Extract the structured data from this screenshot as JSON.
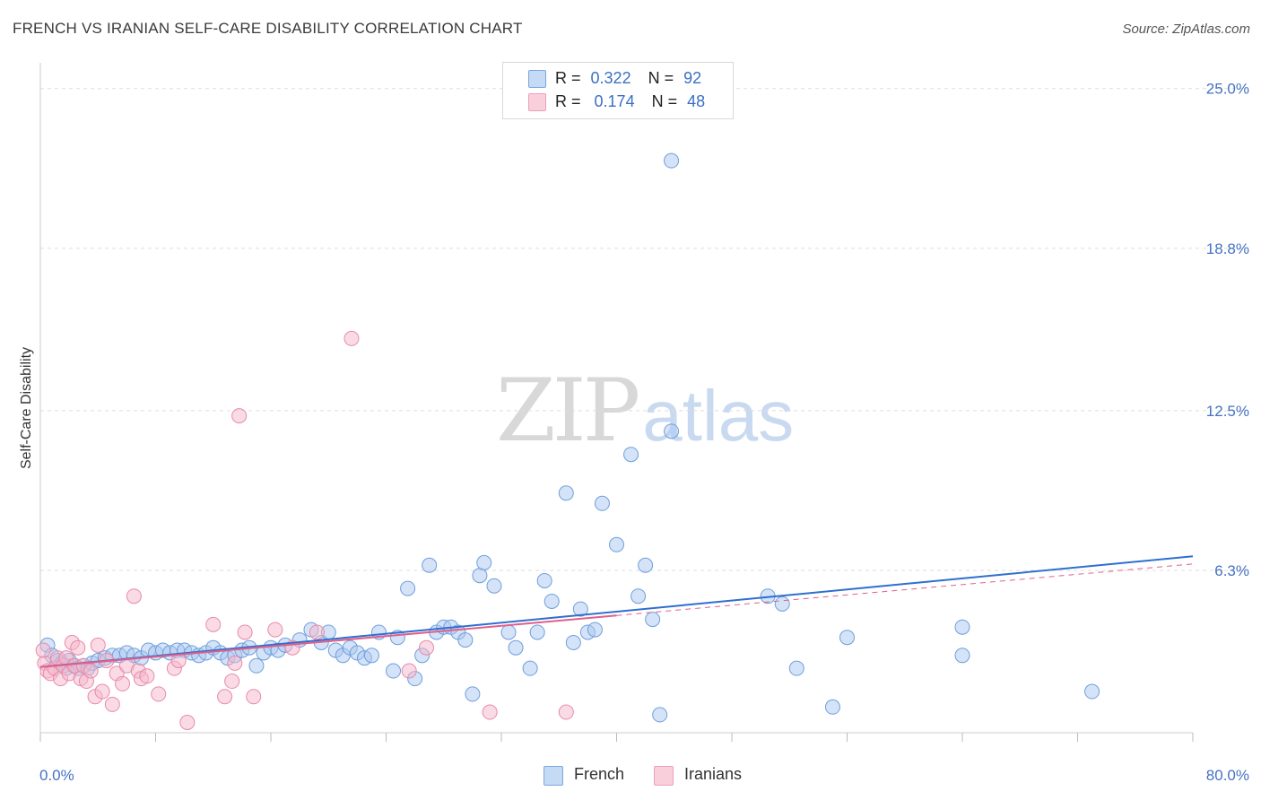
{
  "title": "FRENCH VS IRANIAN SELF-CARE DISABILITY CORRELATION CHART",
  "source": "Source: ZipAtlas.com",
  "watermark": {
    "zip": "ZIP",
    "atlas": "atlas"
  },
  "legend_top": {
    "french": {
      "r_label": "R =",
      "r_value": "0.322",
      "n_label": "N =",
      "n_value": "92"
    },
    "iranians": {
      "r_label": "R =",
      "r_value": "0.174",
      "n_label": "N =",
      "n_value": "48"
    }
  },
  "colors": {
    "french_fill": "#a9c8f0",
    "french_stroke": "#6f9fdc",
    "french_line": "#2f6fcf",
    "iranians_fill": "#f6b8cb",
    "iranians_stroke": "#e88aa8",
    "iranians_line": "#e0608a",
    "grid": "#dddddd",
    "tick_text": "#4472c4"
  },
  "chart_data": {
    "type": "scatter",
    "title": "FRENCH VS IRANIAN SELF-CARE DISABILITY CORRELATION CHART",
    "xlabel": "",
    "ylabel": "Self-Care Disability",
    "xlim": [
      0,
      80
    ],
    "ylim": [
      0,
      26
    ],
    "x_tick_labels": [
      "0.0%",
      "80.0%"
    ],
    "y_ticks": [
      6.3,
      12.5,
      18.8,
      25.0
    ],
    "y_tick_labels": [
      "6.3%",
      "12.5%",
      "18.8%",
      "25.0%"
    ],
    "legend": [
      "French",
      "Iranians"
    ],
    "series": [
      {
        "name": "French",
        "points": [
          [
            0.5,
            3.4
          ],
          [
            0.8,
            3.0
          ],
          [
            1.2,
            2.8
          ],
          [
            1.5,
            2.7
          ],
          [
            1.8,
            2.5
          ],
          [
            2.0,
            2.8
          ],
          [
            2.3,
            2.6
          ],
          [
            2.6,
            2.5
          ],
          [
            3.0,
            2.6
          ],
          [
            3.3,
            2.5
          ],
          [
            3.6,
            2.7
          ],
          [
            4.0,
            2.8
          ],
          [
            4.5,
            2.9
          ],
          [
            5.0,
            3.0
          ],
          [
            5.5,
            3.0
          ],
          [
            6.0,
            3.1
          ],
          [
            6.5,
            3.0
          ],
          [
            7.0,
            2.9
          ],
          [
            7.5,
            3.2
          ],
          [
            8.0,
            3.1
          ],
          [
            8.5,
            3.2
          ],
          [
            9.0,
            3.1
          ],
          [
            9.5,
            3.2
          ],
          [
            10.0,
            3.2
          ],
          [
            10.5,
            3.1
          ],
          [
            11.0,
            3.0
          ],
          [
            11.5,
            3.1
          ],
          [
            12.0,
            3.3
          ],
          [
            12.5,
            3.1
          ],
          [
            13.0,
            2.9
          ],
          [
            13.5,
            3.0
          ],
          [
            14.0,
            3.2
          ],
          [
            14.5,
            3.3
          ],
          [
            15.0,
            2.6
          ],
          [
            15.5,
            3.1
          ],
          [
            16.0,
            3.3
          ],
          [
            16.5,
            3.2
          ],
          [
            17.0,
            3.4
          ],
          [
            18.0,
            3.6
          ],
          [
            18.8,
            4.0
          ],
          [
            19.5,
            3.5
          ],
          [
            20.0,
            3.9
          ],
          [
            20.5,
            3.2
          ],
          [
            21.0,
            3.0
          ],
          [
            21.5,
            3.3
          ],
          [
            22.0,
            3.1
          ],
          [
            22.5,
            2.9
          ],
          [
            23.0,
            3.0
          ],
          [
            23.5,
            3.9
          ],
          [
            24.5,
            2.4
          ],
          [
            24.8,
            3.7
          ],
          [
            25.5,
            5.6
          ],
          [
            26.0,
            2.1
          ],
          [
            26.5,
            3.0
          ],
          [
            27.0,
            6.5
          ],
          [
            27.5,
            3.9
          ],
          [
            28.0,
            4.1
          ],
          [
            28.5,
            4.1
          ],
          [
            29.0,
            3.9
          ],
          [
            29.5,
            3.6
          ],
          [
            30.0,
            1.5
          ],
          [
            30.5,
            6.1
          ],
          [
            30.8,
            6.6
          ],
          [
            31.5,
            5.7
          ],
          [
            32.5,
            3.9
          ],
          [
            33.0,
            3.3
          ],
          [
            34.0,
            2.5
          ],
          [
            34.5,
            3.9
          ],
          [
            35.0,
            5.9
          ],
          [
            35.5,
            5.1
          ],
          [
            36.5,
            9.3
          ],
          [
            37.0,
            3.5
          ],
          [
            37.5,
            4.8
          ],
          [
            38.0,
            3.9
          ],
          [
            38.5,
            4.0
          ],
          [
            39.0,
            8.9
          ],
          [
            40.0,
            7.3
          ],
          [
            41.0,
            10.8
          ],
          [
            41.5,
            5.3
          ],
          [
            42.0,
            6.5
          ],
          [
            42.5,
            4.4
          ],
          [
            43.0,
            0.7
          ],
          [
            43.8,
            11.7
          ],
          [
            43.8,
            22.2
          ],
          [
            50.5,
            5.3
          ],
          [
            51.5,
            5.0
          ],
          [
            52.5,
            2.5
          ],
          [
            55.0,
            1.0
          ],
          [
            56.0,
            3.7
          ],
          [
            64.0,
            3.0
          ],
          [
            64.0,
            4.1
          ],
          [
            73.0,
            1.6
          ]
        ]
      },
      {
        "name": "Iranians",
        "points": [
          [
            0.3,
            2.7
          ],
          [
            0.5,
            2.4
          ],
          [
            0.7,
            2.3
          ],
          [
            1.0,
            2.5
          ],
          [
            1.2,
            2.9
          ],
          [
            1.4,
            2.1
          ],
          [
            1.6,
            2.6
          ],
          [
            1.8,
            2.9
          ],
          [
            2.0,
            2.3
          ],
          [
            2.2,
            3.5
          ],
          [
            2.4,
            2.6
          ],
          [
            2.6,
            3.3
          ],
          [
            2.8,
            2.1
          ],
          [
            3.0,
            2.6
          ],
          [
            3.2,
            2.0
          ],
          [
            3.5,
            2.4
          ],
          [
            3.8,
            1.4
          ],
          [
            4.0,
            3.4
          ],
          [
            4.3,
            1.6
          ],
          [
            4.6,
            2.8
          ],
          [
            5.0,
            1.1
          ],
          [
            5.3,
            2.3
          ],
          [
            5.7,
            1.9
          ],
          [
            6.0,
            2.6
          ],
          [
            6.5,
            5.3
          ],
          [
            6.8,
            2.4
          ],
          [
            7.0,
            2.1
          ],
          [
            7.4,
            2.2
          ],
          [
            8.2,
            1.5
          ],
          [
            9.3,
            2.5
          ],
          [
            9.6,
            2.8
          ],
          [
            10.2,
            0.4
          ],
          [
            12.0,
            4.2
          ],
          [
            12.8,
            1.4
          ],
          [
            13.3,
            2.0
          ],
          [
            13.5,
            2.7
          ],
          [
            13.8,
            12.3
          ],
          [
            14.2,
            3.9
          ],
          [
            14.8,
            1.4
          ],
          [
            16.3,
            4.0
          ],
          [
            17.5,
            3.3
          ],
          [
            19.2,
            3.9
          ],
          [
            21.6,
            15.3
          ],
          [
            25.6,
            2.4
          ],
          [
            26.8,
            3.3
          ],
          [
            31.2,
            0.8
          ],
          [
            36.5,
            0.8
          ],
          [
            0.2,
            3.2
          ]
        ]
      }
    ],
    "trend_lines": [
      {
        "name": "French",
        "x": [
          0,
          80
        ],
        "y": [
          2.55,
          6.85
        ],
        "style": "solid"
      },
      {
        "name": "Iranians",
        "x": [
          0,
          40
        ],
        "y": [
          2.55,
          4.55
        ],
        "style": "solid"
      },
      {
        "name": "Iranians-extrapolated",
        "x": [
          40,
          80
        ],
        "y": [
          4.55,
          6.55
        ],
        "style": "dashed"
      }
    ]
  }
}
